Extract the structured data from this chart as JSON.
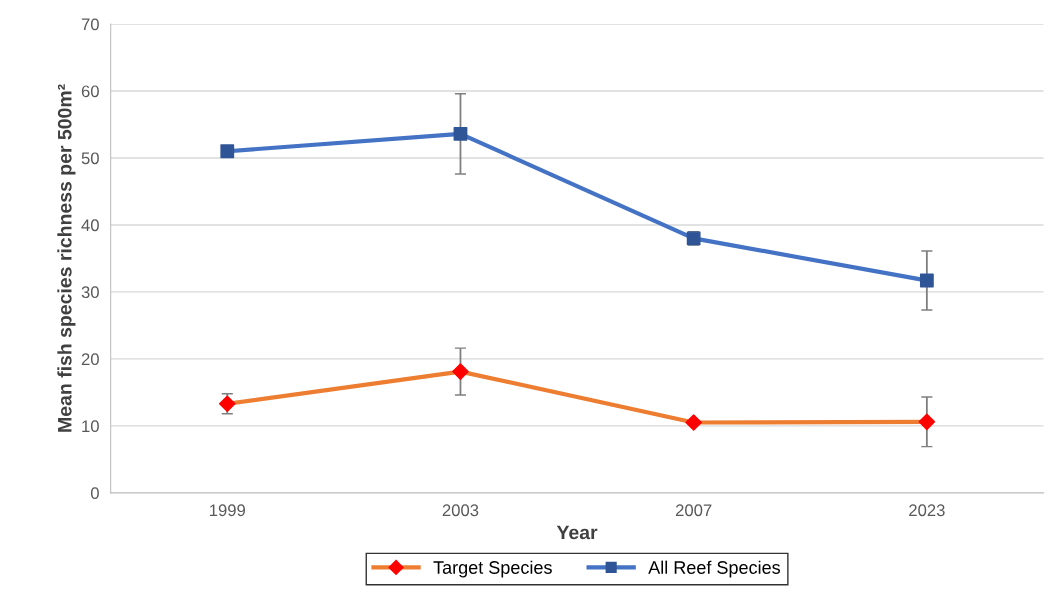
{
  "chart_data": {
    "type": "line",
    "xlabel": "Year",
    "ylabel": "Mean fish species richness per 500m²",
    "categories": [
      "1999",
      "2003",
      "2007",
      "2023"
    ],
    "series": [
      {
        "name": "Target Species",
        "color": "#ed7d31",
        "colors": [
          "#ff0000",
          "#ff0000",
          "#ff0000",
          "#ff0000"
        ],
        "marker": "diamond",
        "values": [
          13.3,
          18.1,
          10.5,
          10.6
        ],
        "errors": [
          1.5,
          3.5,
          null,
          3.7
        ]
      },
      {
        "name": "All Reef Species",
        "color": "#4472c4",
        "colors": [
          "#2f5597",
          "#2f5597",
          "#2f5597",
          "#2f5597"
        ],
        "marker": "square",
        "values": [
          51.0,
          53.6,
          38.0,
          31.7
        ],
        "errors": [
          null,
          6.0,
          1.0,
          4.4
        ]
      }
    ],
    "ylim": [
      0,
      70
    ],
    "yticks": [
      0,
      10,
      20,
      30,
      40,
      50,
      60,
      70
    ],
    "grid": "y",
    "legend": "bottom"
  }
}
